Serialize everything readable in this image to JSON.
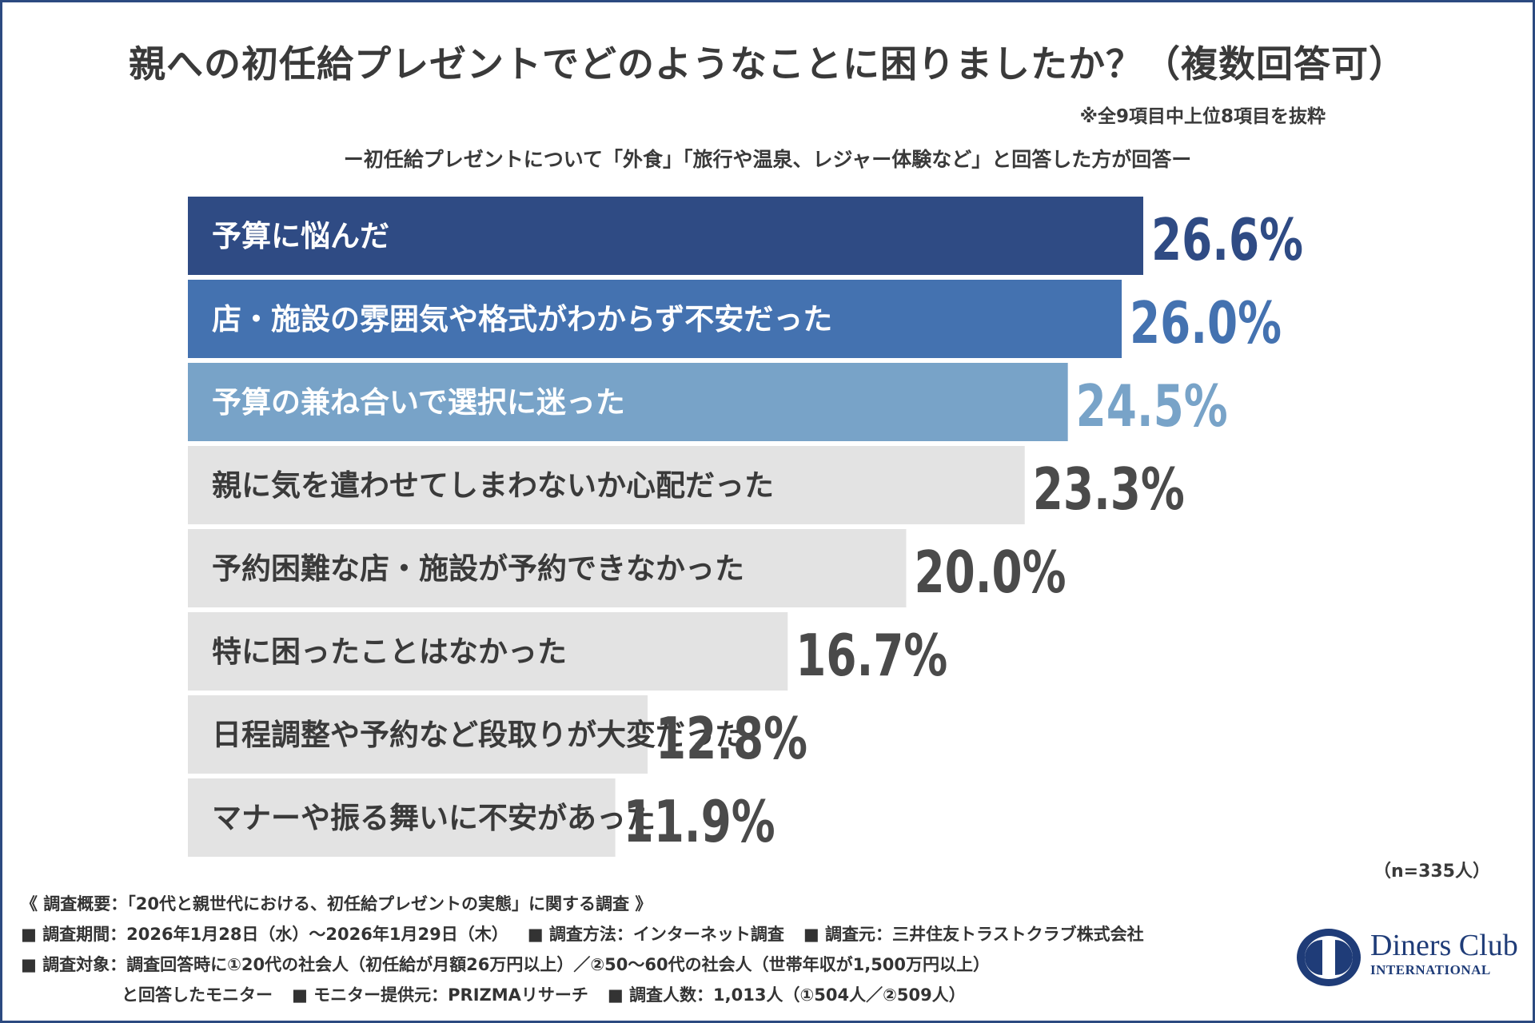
{
  "chart_data": {
    "type": "bar",
    "orientation": "horizontal",
    "title": "親への初任給プレゼントでどのようなことに困りましたか？（複数回答可）",
    "note": "※全9項目中上位8項目を抜粋",
    "subtitle": "ー初任給プレゼントについて「外食」「旅行や温泉、レジャー体験など」と回答した方が回答ー",
    "categories": [
      "予算に悩んだ",
      "店・施設の雰囲気や格式がわからず不安だった",
      "予算の兼ね合いで選択に迷った",
      "親に気を遣わせてしまわないか心配だった",
      "予約困難な店・施設が予約できなかった",
      "特に困ったことはなかった",
      "日程調整や予約など段取りが大変だった",
      "マナーや振る舞いに不安があった"
    ],
    "values": [
      26.6,
      26.0,
      24.5,
      23.3,
      20.0,
      16.7,
      12.8,
      11.9
    ],
    "value_labels": [
      "26.6%",
      "26.0%",
      "24.5%",
      "23.3%",
      "20.0%",
      "16.7%",
      "12.8%",
      "11.9%"
    ],
    "xlim": [
      0,
      26.6
    ],
    "grid": false,
    "legend": "none",
    "colors": [
      "#2f4b84",
      "#4472b0",
      "#78a3c8",
      "#e3e3e3",
      "#e3e3e3",
      "#e3e3e3",
      "#e3e3e3",
      "#e3e3e3"
    ],
    "label_colors": [
      "#ffffff",
      "#ffffff",
      "#ffffff",
      "#3a3a3a",
      "#3a3a3a",
      "#3a3a3a",
      "#3a3a3a",
      "#3a3a3a"
    ],
    "value_colors": [
      "#2f4b84",
      "#4472b0",
      "#78a3c8",
      "#4a4a4a",
      "#4a4a4a",
      "#4a4a4a",
      "#4a4a4a",
      "#4a4a4a"
    ],
    "sample_size": "（n=335人）"
  },
  "survey": {
    "heading": "《 調査概要：「20代と親世代における、初任給プレゼントの実態」に関する調査 》",
    "period": "■ 調査期間：2026年1月28日（水）〜2026年1月29日（木）",
    "method": "■ 調査方法：インターネット調査",
    "source": "■ 調査元：三井住友トラストクラブ株式会社",
    "target": "■ 調査対象：調査回答時に①20代の社会人（初任給が月額26万円以上）／②50〜60代の社会人（世帯年収が1,500万円以上）",
    "target_cont": "と回答したモニター",
    "provider": "■ モニター提供元：PRIZMAリサーチ",
    "respondents": "■ 調査人数：1,013人（①504人／②509人）"
  },
  "logo": {
    "name": "Diners Club",
    "sub": "INTERNATIONAL",
    "brand_color": "#1f3c78",
    "icon": "diners-club-logo-icon"
  }
}
